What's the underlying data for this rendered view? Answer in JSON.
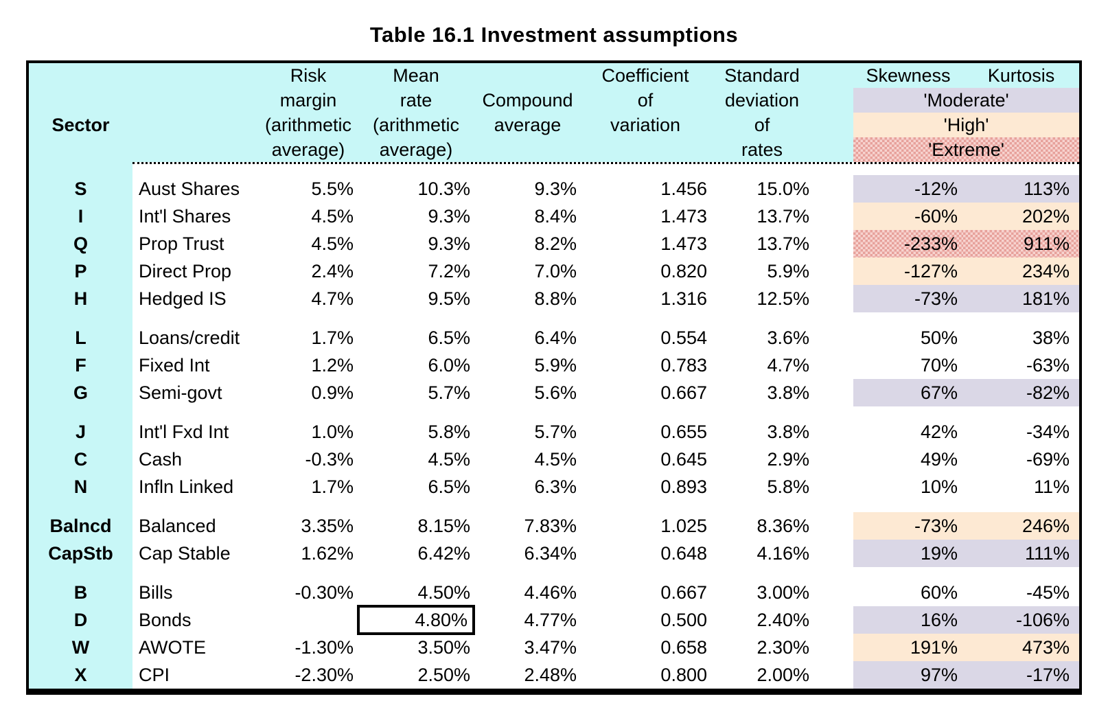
{
  "title": "Table 16.1 Investment assumptions",
  "colors": {
    "header_cyan": "#c8f7f7",
    "moderate_band": "#dad7e6",
    "high_band": "#fde9d3",
    "extreme_band_light": "#f7d3cf",
    "extreme_band_dark": "#e7a19b",
    "border": "#000000"
  },
  "header": {
    "sector": "Sector",
    "risk": [
      "Risk",
      "margin",
      "(arithmetic",
      "average)"
    ],
    "mean": [
      "Mean",
      "rate",
      "(arithmetic",
      "average)"
    ],
    "compound": [
      "",
      "Compound",
      "average",
      ""
    ],
    "coefficient": [
      "Coefficient",
      "of",
      "variation",
      ""
    ],
    "std": [
      "Standard",
      "deviation",
      "of",
      "rates"
    ],
    "skewness": "Skewness",
    "kurtosis": "Kurtosis",
    "legend": {
      "moderate": "'Moderate'",
      "high": "'High'",
      "extreme": "'Extreme'"
    }
  },
  "groups": [
    {
      "rows": [
        {
          "code": "S",
          "name": "Aust Shares",
          "risk": "5.5%",
          "mean": "10.3%",
          "compound": "9.3%",
          "coeff": "1.456",
          "std": "15.0%",
          "skew": "-12%",
          "kurt": "113%",
          "band": "moderate"
        },
        {
          "code": "I",
          "name": "Int'l Shares",
          "risk": "4.5%",
          "mean": "9.3%",
          "compound": "8.4%",
          "coeff": "1.473",
          "std": "13.7%",
          "skew": "-60%",
          "kurt": "202%",
          "band": "high"
        },
        {
          "code": "Q",
          "name": "Prop Trust",
          "risk": "4.5%",
          "mean": "9.3%",
          "compound": "8.2%",
          "coeff": "1.473",
          "std": "13.7%",
          "skew": "-233%",
          "kurt": "911%",
          "band": "extreme"
        },
        {
          "code": "P",
          "name": "Direct Prop",
          "risk": "2.4%",
          "mean": "7.2%",
          "compound": "7.0%",
          "coeff": "0.820",
          "std": "5.9%",
          "skew": "-127%",
          "kurt": "234%",
          "band": "high"
        },
        {
          "code": "H",
          "name": "Hedged IS",
          "risk": "4.7%",
          "mean": "9.5%",
          "compound": "8.8%",
          "coeff": "1.316",
          "std": "12.5%",
          "skew": "-73%",
          "kurt": "181%",
          "band": "moderate"
        }
      ]
    },
    {
      "rows": [
        {
          "code": "L",
          "name": "Loans/credit",
          "risk": "1.7%",
          "mean": "6.5%",
          "compound": "6.4%",
          "coeff": "0.554",
          "std": "3.6%",
          "skew": "50%",
          "kurt": "38%",
          "band": "none"
        },
        {
          "code": "F",
          "name": "Fixed Int",
          "risk": "1.2%",
          "mean": "6.0%",
          "compound": "5.9%",
          "coeff": "0.783",
          "std": "4.7%",
          "skew": "70%",
          "kurt": "-63%",
          "band": "none"
        },
        {
          "code": "G",
          "name": "Semi-govt",
          "risk": "0.9%",
          "mean": "5.7%",
          "compound": "5.6%",
          "coeff": "0.667",
          "std": "3.8%",
          "skew": "67%",
          "kurt": "-82%",
          "band": "moderate"
        }
      ]
    },
    {
      "rows": [
        {
          "code": "J",
          "name": "Int'l Fxd Int",
          "risk": "1.0%",
          "mean": "5.8%",
          "compound": "5.7%",
          "coeff": "0.655",
          "std": "3.8%",
          "skew": "42%",
          "kurt": "-34%",
          "band": "none"
        },
        {
          "code": "C",
          "name": "Cash",
          "risk": "-0.3%",
          "mean": "4.5%",
          "compound": "4.5%",
          "coeff": "0.645",
          "std": "2.9%",
          "skew": "49%",
          "kurt": "-69%",
          "band": "none"
        },
        {
          "code": "N",
          "name": "Infln Linked",
          "risk": "1.7%",
          "mean": "6.5%",
          "compound": "6.3%",
          "coeff": "0.893",
          "std": "5.8%",
          "skew": "10%",
          "kurt": "11%",
          "band": "none"
        }
      ]
    },
    {
      "rows": [
        {
          "code": "Balncd",
          "name": "Balanced",
          "risk": "3.35%",
          "mean": "8.15%",
          "compound": "7.83%",
          "coeff": "1.025",
          "std": "8.36%",
          "skew": "-73%",
          "kurt": "246%",
          "band": "high"
        },
        {
          "code": "CapStb",
          "name": "Cap Stable",
          "risk": "1.62%",
          "mean": "6.42%",
          "compound": "6.34%",
          "coeff": "0.648",
          "std": "4.16%",
          "skew": "19%",
          "kurt": "111%",
          "band": "moderate"
        }
      ]
    },
    {
      "rows": [
        {
          "code": "B",
          "name": "Bills",
          "risk": "-0.30%",
          "mean": "4.50%",
          "compound": "4.46%",
          "coeff": "0.667",
          "std": "3.00%",
          "skew": "60%",
          "kurt": "-45%",
          "band": "none"
        },
        {
          "code": "D",
          "name": "Bonds",
          "risk": "",
          "mean": "4.80%",
          "compound": "4.77%",
          "coeff": "0.500",
          "std": "2.40%",
          "skew": "16%",
          "kurt": "-106%",
          "band": "moderate",
          "boxed": true
        },
        {
          "code": "W",
          "name": "AWOTE",
          "risk": "-1.30%",
          "mean": "3.50%",
          "compound": "3.47%",
          "coeff": "0.658",
          "std": "2.30%",
          "skew": "191%",
          "kurt": "473%",
          "band": "high"
        },
        {
          "code": "X",
          "name": "CPI",
          "risk": "-2.30%",
          "mean": "2.50%",
          "compound": "2.48%",
          "coeff": "0.800",
          "std": "2.00%",
          "skew": "97%",
          "kurt": "-17%",
          "band": "moderate"
        }
      ]
    }
  ]
}
